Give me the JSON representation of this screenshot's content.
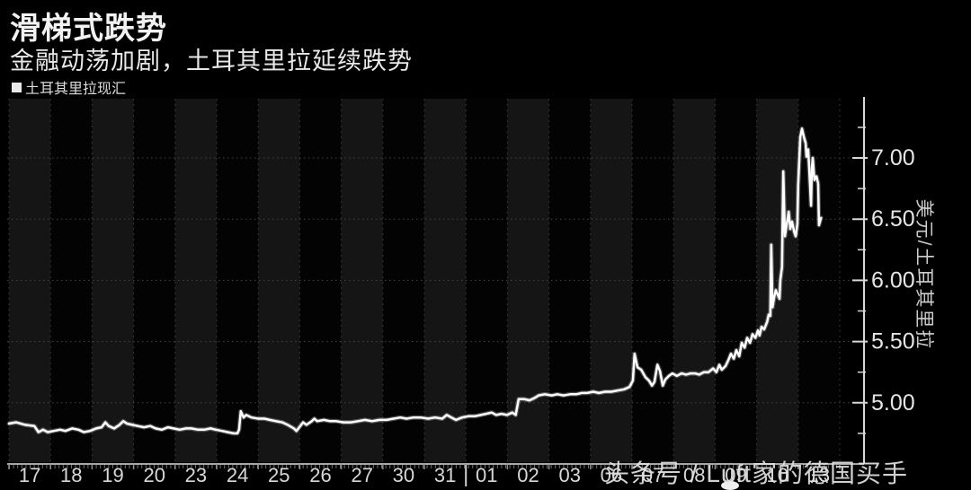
{
  "header": {
    "title": "滑梯式跌势",
    "subtitle": "金融动荡加剧，土耳其里拉延续跌势"
  },
  "legend": {
    "label": "土耳其里拉现汇"
  },
  "watermark": "头条号 / Luft家的德国买手",
  "colors": {
    "background": "#000000",
    "band_light": "#151515",
    "band_dark": "#030303",
    "band_divider": "#323232",
    "gridline": "#444444",
    "axis_line": "#a8a8a8",
    "y_axis_line": "#d8d8d8",
    "tick_label": "#e6e6e6",
    "series_line": "#ffffff"
  },
  "chart_data": {
    "type": "line",
    "title": "滑梯式跌势",
    "subtitle": "金融动荡加剧，土耳其里拉延续跌势",
    "ylabel": "美元/土耳其里拉",
    "legend_position": "top-left",
    "grid": "dotted horizontal at majors; alternating vertical day bands",
    "x_tick_labels": [
      "17",
      "18",
      "19",
      "20",
      "23",
      "24",
      "25",
      "26",
      "27",
      "30",
      "31",
      "01",
      "02",
      "03",
      "06",
      "07",
      "08",
      "09",
      "10",
      "13"
    ],
    "x_month_break_after_index": 10,
    "y_major_ticks": [
      5.0,
      5.5,
      6.0,
      6.5,
      7.0
    ],
    "y_minor_ticks": [
      4.75,
      5.25,
      5.75,
      6.25,
      6.75,
      7.25
    ],
    "y_tick_format": "0.00",
    "ylim": [
      4.5,
      7.48
    ],
    "x_unit": "trading-day index (0 = Jul 17 band start, one unit per band, 20 bands)",
    "series": [
      {
        "name": "土耳其里拉现汇",
        "points": [
          [
            0.0,
            4.83
          ],
          [
            0.17,
            4.84
          ],
          [
            0.39,
            4.82
          ],
          [
            0.61,
            4.81
          ],
          [
            0.71,
            4.76
          ],
          [
            0.82,
            4.78
          ],
          [
            0.93,
            4.76
          ],
          [
            1.08,
            4.77
          ],
          [
            1.23,
            4.78
          ],
          [
            1.36,
            4.77
          ],
          [
            1.52,
            4.79
          ],
          [
            1.67,
            4.78
          ],
          [
            1.8,
            4.76
          ],
          [
            1.95,
            4.77
          ],
          [
            2.1,
            4.79
          ],
          [
            2.23,
            4.8
          ],
          [
            2.32,
            4.84
          ],
          [
            2.4,
            4.81
          ],
          [
            2.53,
            4.79
          ],
          [
            2.66,
            4.82
          ],
          [
            2.75,
            4.85
          ],
          [
            2.84,
            4.83
          ],
          [
            2.97,
            4.82
          ],
          [
            3.1,
            4.81
          ],
          [
            3.25,
            4.8
          ],
          [
            3.4,
            4.81
          ],
          [
            3.53,
            4.79
          ],
          [
            3.68,
            4.78
          ],
          [
            3.83,
            4.8
          ],
          [
            3.96,
            4.79
          ],
          [
            4.11,
            4.78
          ],
          [
            4.26,
            4.79
          ],
          [
            4.39,
            4.79
          ],
          [
            4.55,
            4.78
          ],
          [
            4.7,
            4.78
          ],
          [
            4.85,
            4.79
          ],
          [
            4.98,
            4.78
          ],
          [
            5.13,
            4.77
          ],
          [
            5.26,
            4.76
          ],
          [
            5.41,
            4.75
          ],
          [
            5.5,
            4.75
          ],
          [
            5.54,
            4.78
          ],
          [
            5.58,
            4.93
          ],
          [
            5.65,
            4.88
          ],
          [
            5.71,
            4.9
          ],
          [
            5.84,
            4.88
          ],
          [
            6.0,
            4.87
          ],
          [
            6.15,
            4.87
          ],
          [
            6.28,
            4.86
          ],
          [
            6.43,
            4.85
          ],
          [
            6.58,
            4.84
          ],
          [
            6.71,
            4.82
          ],
          [
            6.86,
            4.79
          ],
          [
            6.92,
            4.77
          ],
          [
            6.99,
            4.8
          ],
          [
            7.08,
            4.84
          ],
          [
            7.16,
            4.82
          ],
          [
            7.29,
            4.85
          ],
          [
            7.35,
            4.87
          ],
          [
            7.42,
            4.85
          ],
          [
            7.58,
            4.86
          ],
          [
            7.73,
            4.85
          ],
          [
            7.88,
            4.85
          ],
          [
            8.05,
            4.84
          ],
          [
            8.23,
            4.84
          ],
          [
            8.4,
            4.85
          ],
          [
            8.57,
            4.86
          ],
          [
            8.74,
            4.85
          ],
          [
            8.92,
            4.86
          ],
          [
            9.09,
            4.86
          ],
          [
            9.26,
            4.87
          ],
          [
            9.42,
            4.88
          ],
          [
            9.57,
            4.87
          ],
          [
            9.74,
            4.88
          ],
          [
            9.91,
            4.88
          ],
          [
            10.09,
            4.87
          ],
          [
            10.26,
            4.88
          ],
          [
            10.43,
            4.87
          ],
          [
            10.54,
            4.9
          ],
          [
            10.65,
            4.88
          ],
          [
            10.76,
            4.86
          ],
          [
            10.91,
            4.88
          ],
          [
            11.06,
            4.89
          ],
          [
            11.21,
            4.89
          ],
          [
            11.36,
            4.9
          ],
          [
            11.49,
            4.91
          ],
          [
            11.62,
            4.92
          ],
          [
            11.73,
            4.9
          ],
          [
            11.86,
            4.91
          ],
          [
            11.99,
            4.9
          ],
          [
            12.12,
            4.92
          ],
          [
            12.2,
            4.9
          ],
          [
            12.27,
            5.03
          ],
          [
            12.4,
            5.03
          ],
          [
            12.53,
            5.02
          ],
          [
            12.66,
            5.04
          ],
          [
            12.75,
            5.06
          ],
          [
            12.9,
            5.07
          ],
          [
            13.07,
            5.06
          ],
          [
            13.2,
            5.07
          ],
          [
            13.35,
            5.06
          ],
          [
            13.51,
            5.07
          ],
          [
            13.66,
            5.07
          ],
          [
            13.79,
            5.08
          ],
          [
            13.92,
            5.08
          ],
          [
            14.07,
            5.09
          ],
          [
            14.2,
            5.08
          ],
          [
            14.35,
            5.09
          ],
          [
            14.5,
            5.09
          ],
          [
            14.65,
            5.1
          ],
          [
            14.81,
            5.11
          ],
          [
            14.94,
            5.13
          ],
          [
            15.02,
            5.18
          ],
          [
            15.06,
            5.4
          ],
          [
            15.13,
            5.29
          ],
          [
            15.22,
            5.27
          ],
          [
            15.32,
            5.21
          ],
          [
            15.41,
            5.18
          ],
          [
            15.48,
            5.14
          ],
          [
            15.54,
            5.17
          ],
          [
            15.61,
            5.31
          ],
          [
            15.67,
            5.26
          ],
          [
            15.74,
            5.14
          ],
          [
            15.8,
            5.19
          ],
          [
            15.89,
            5.22
          ],
          [
            15.97,
            5.24
          ],
          [
            16.08,
            5.22
          ],
          [
            16.19,
            5.24
          ],
          [
            16.3,
            5.23
          ],
          [
            16.41,
            5.24
          ],
          [
            16.52,
            5.24
          ],
          [
            16.62,
            5.23
          ],
          [
            16.73,
            5.25
          ],
          [
            16.84,
            5.25
          ],
          [
            16.95,
            5.28
          ],
          [
            17.03,
            5.25
          ],
          [
            17.1,
            5.31
          ],
          [
            17.16,
            5.27
          ],
          [
            17.25,
            5.3
          ],
          [
            17.32,
            5.35
          ],
          [
            17.38,
            5.4
          ],
          [
            17.45,
            5.36
          ],
          [
            17.51,
            5.43
          ],
          [
            17.58,
            5.38
          ],
          [
            17.64,
            5.49
          ],
          [
            17.71,
            5.45
          ],
          [
            17.77,
            5.53
          ],
          [
            17.84,
            5.49
          ],
          [
            17.9,
            5.56
          ],
          [
            17.97,
            5.53
          ],
          [
            18.03,
            5.59
          ],
          [
            18.07,
            5.55
          ],
          [
            18.12,
            5.62
          ],
          [
            18.18,
            5.6
          ],
          [
            18.25,
            5.66
          ],
          [
            18.29,
            5.72
          ],
          [
            18.33,
            5.71
          ],
          [
            18.35,
            6.29
          ],
          [
            18.38,
            5.78
          ],
          [
            18.42,
            5.86
          ],
          [
            18.46,
            5.92
          ],
          [
            18.51,
            5.88
          ],
          [
            18.55,
            5.85
          ],
          [
            18.57,
            6.0
          ],
          [
            18.61,
            6.11
          ],
          [
            18.64,
            6.89
          ],
          [
            18.68,
            6.36
          ],
          [
            18.72,
            6.45
          ],
          [
            18.77,
            6.56
          ],
          [
            18.81,
            6.42
          ],
          [
            18.85,
            6.48
          ],
          [
            18.9,
            6.4
          ],
          [
            18.94,
            6.36
          ],
          [
            18.98,
            6.46
          ],
          [
            19.0,
            6.78
          ],
          [
            19.05,
            7.17
          ],
          [
            19.09,
            7.24
          ],
          [
            19.13,
            7.18
          ],
          [
            19.18,
            7.12
          ],
          [
            19.2,
            7.01
          ],
          [
            19.24,
            7.07
          ],
          [
            19.26,
            6.95
          ],
          [
            19.31,
            6.61
          ],
          [
            19.33,
            6.92
          ],
          [
            19.35,
            7.0
          ],
          [
            19.39,
            6.82
          ],
          [
            19.44,
            6.85
          ],
          [
            19.48,
            6.79
          ],
          [
            19.5,
            6.45
          ],
          [
            19.55,
            6.51
          ]
        ]
      }
    ]
  }
}
